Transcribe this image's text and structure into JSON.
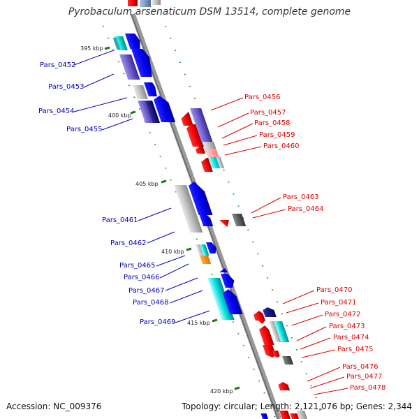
{
  "title": "Pyrobaculum arsenaticum DSM 13514, complete genome",
  "footer": {
    "accession": "Accession: NC_009376",
    "summary": "Topology: circular; Length: 2,121,076 bp; Genes: 2,344"
  },
  "scale_labels": [
    "395 kbp",
    "400 kbp",
    "405 kbp",
    "410 kbp",
    "415 kbp",
    "420 kbp"
  ],
  "colors": {
    "left_labels": "#0000bb",
    "right_labels": "#dd0000",
    "backbone": "#888888",
    "ticks": "#1a7a1a"
  },
  "genes_left": [
    "Pars_0452",
    "Pars_0453",
    "Pars_0454",
    "Pars_0455",
    "Pars_0461",
    "Pars_0462",
    "Pars_0465",
    "Pars_0466",
    "Pars_0467",
    "Pars_0468",
    "Pars_0469"
  ],
  "genes_right": [
    "Pars_0456",
    "Pars_0457",
    "Pars_0458",
    "Pars_0459",
    "Pars_0460",
    "Pars_0463",
    "Pars_0464",
    "Pars_0470",
    "Pars_0471",
    "Pars_0472",
    "Pars_0473",
    "Pars_0474",
    "Pars_0475",
    "Pars_0476",
    "Pars_0477",
    "Pars_0478"
  ]
}
